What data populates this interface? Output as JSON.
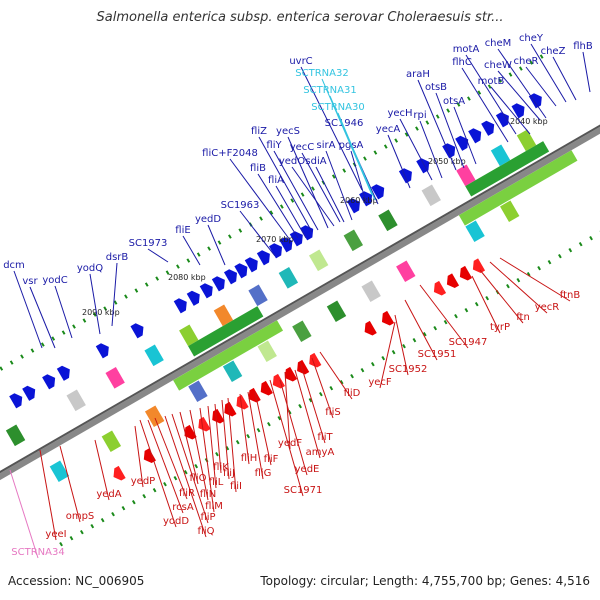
{
  "title": "Salmonella enterica subsp. enterica serovar Choleraesuis str...",
  "footer": {
    "accession": "Accession: NC_006905",
    "summary": "Topology: circular; Length: 4,755,700 bp; Genes: 4,516"
  },
  "colors": {
    "forward_label": "#1a1aa6",
    "reverse_label": "#c81414",
    "rna_label": "#33c4e0",
    "pseudo_label": "#e678c2",
    "backbone": "#888888"
  },
  "kbp_labels": [
    "2040 kbp",
    "2050 kbp",
    "2060 kbp",
    "2070 kbp",
    "2080 kbp",
    "2090 kbp"
  ],
  "forward_genes": [
    "dcm",
    "vsr",
    "yodC",
    "yodQ",
    "dsrB",
    "SC1973",
    "fliE",
    "yedD",
    "SC1963",
    "fliC+F2048",
    "fliB",
    "fliA",
    "fliZ",
    "fliY",
    "yecS",
    "yedO",
    "yecC",
    "sdiA",
    "sirA",
    "pgsA",
    "uvrC",
    "SC1946",
    "yecA",
    "yecH",
    "rpi",
    "araH",
    "otsB",
    "otsA",
    "flhC",
    "motA",
    "motB",
    "cheW",
    "cheM",
    "cheR",
    "cheY",
    "cheZ",
    "flhB"
  ],
  "rna_genes": [
    "SCTRNA32",
    "SCTRNA31",
    "SCTRNA30"
  ],
  "reverse_genes": [
    "ftnB",
    "yecR",
    "ftn",
    "tyrP",
    "SC1947",
    "SC1951",
    "SC1952",
    "yecF",
    "fliD",
    "fliS",
    "fliT",
    "amyA",
    "yedF",
    "yedE",
    "SC1971",
    "fliF",
    "fliG",
    "fliH",
    "fliI",
    "fliJ",
    "fliK",
    "fliL",
    "fliM",
    "fliN",
    "fliO",
    "fliP",
    "fliQ",
    "fliR",
    "rcsA",
    "yodD",
    "yedP",
    "yedA",
    "ompS",
    "yeeI"
  ],
  "pseudo_genes": [
    "SCTRNA34"
  ]
}
